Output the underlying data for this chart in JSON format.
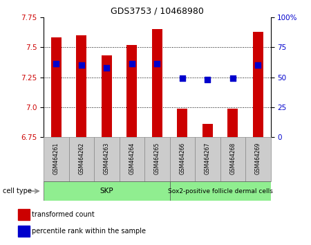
{
  "title": "GDS3753 / 10468980",
  "samples": [
    "GSM464261",
    "GSM464262",
    "GSM464263",
    "GSM464264",
    "GSM464265",
    "GSM464266",
    "GSM464267",
    "GSM464268",
    "GSM464269"
  ],
  "red_values": [
    7.58,
    7.6,
    7.43,
    7.52,
    7.65,
    6.99,
    6.86,
    6.99,
    7.63
  ],
  "blue_values": [
    7.36,
    7.35,
    7.33,
    7.36,
    7.36,
    7.24,
    7.23,
    7.24,
    7.35
  ],
  "y_min": 6.75,
  "y_max": 7.75,
  "y_ticks_left": [
    6.75,
    7.0,
    7.25,
    7.5,
    7.75
  ],
  "y_ticks_right_labels": [
    "0",
    "25",
    "50",
    "75",
    "100%"
  ],
  "skp_count": 5,
  "sox2_count": 4,
  "cell_type_label": "cell type",
  "bar_color": "#CC0000",
  "dot_color": "#0000CC",
  "bar_width": 0.4,
  "dot_size": 30,
  "legend_items": [
    {
      "label": "transformed count",
      "color": "#CC0000"
    },
    {
      "label": "percentile rank within the sample",
      "color": "#0000CC"
    }
  ],
  "background_color": "#FFFFFF",
  "left_label_color": "#CC0000",
  "right_label_color": "#0000CC",
  "group_color": "#90EE90",
  "sample_box_color": "#CCCCCC"
}
